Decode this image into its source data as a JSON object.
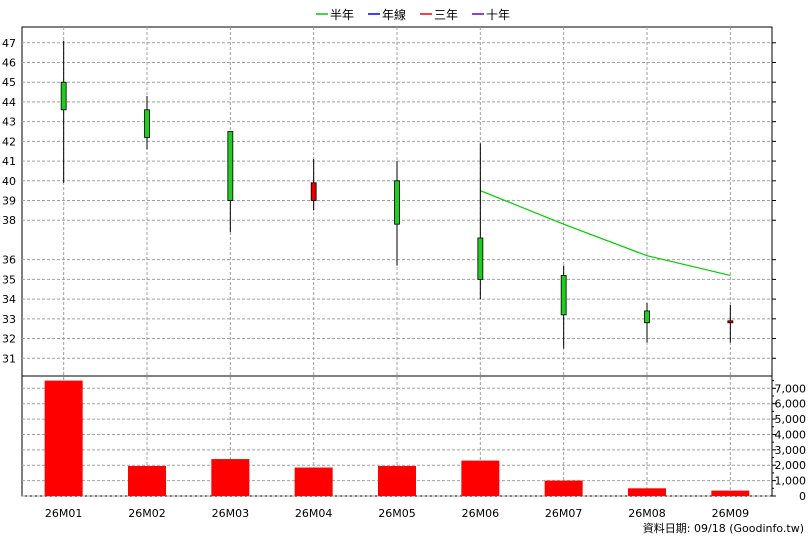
{
  "chart_data": {
    "type": "candlestick",
    "legend": [
      {
        "label": "半年",
        "color": "#00cc00"
      },
      {
        "label": "年線",
        "color": "#0000ff"
      },
      {
        "label": "三年",
        "color": "#ff0000"
      },
      {
        "label": "十年",
        "color": "#6600cc"
      }
    ],
    "categories": [
      "26M01",
      "26M02",
      "26M03",
      "26M04",
      "26M05",
      "26M06",
      "26M07",
      "26M08",
      "26M09"
    ],
    "price_ticks": [
      31,
      32,
      33,
      34,
      35,
      36,
      38,
      39,
      40,
      41,
      42,
      43,
      44,
      45,
      46,
      47
    ],
    "price_range": [
      30.1,
      47.8
    ],
    "volume_ticks": [
      "0",
      "1,000",
      "2,000",
      "3,000",
      "4,000",
      "5,000",
      "6,000",
      "7,000"
    ],
    "volume_range": [
      0,
      7800
    ],
    "candles": [
      {
        "open": 45.0,
        "high": 47.1,
        "low": 39.9,
        "close": 43.6,
        "up": false
      },
      {
        "open": 43.6,
        "high": 44.3,
        "low": 41.6,
        "close": 42.2,
        "up": false
      },
      {
        "open": 42.5,
        "high": 42.5,
        "low": 37.4,
        "close": 39.0,
        "up": false
      },
      {
        "open": 39.0,
        "high": 41.1,
        "low": 38.5,
        "close": 39.9,
        "up": true
      },
      {
        "open": 40.0,
        "high": 41.0,
        "low": 35.7,
        "close": 37.8,
        "up": false
      },
      {
        "open": 37.1,
        "high": 41.9,
        "low": 34.0,
        "close": 35.0,
        "up": false
      },
      {
        "open": 35.2,
        "high": 35.7,
        "low": 31.5,
        "close": 33.2,
        "up": false
      },
      {
        "open": 33.4,
        "high": 33.8,
        "low": 31.8,
        "close": 32.8,
        "up": false
      },
      {
        "open": 32.9,
        "high": 33.7,
        "low": 31.8,
        "close": 32.8,
        "up": true
      }
    ],
    "volume": [
      7500,
      1950,
      2400,
      1850,
      1950,
      2300,
      1000,
      500,
      350
    ],
    "half_year_ma": {
      "name": "半年",
      "points": [
        {
          "category": "26M06",
          "value": 39.5
        },
        {
          "category": "26M07",
          "value": 37.8
        },
        {
          "category": "26M08",
          "value": 36.2
        },
        {
          "category": "26M09",
          "value": 35.2
        }
      ]
    },
    "footer": "資料日期: 09/18  (Goodinfo.tw)"
  },
  "colors": {
    "up": "#e00000",
    "down": "#22cc22",
    "volume": "#ff0000",
    "grid": "#a0a0a0",
    "ma_half_year": "#00cc00"
  }
}
